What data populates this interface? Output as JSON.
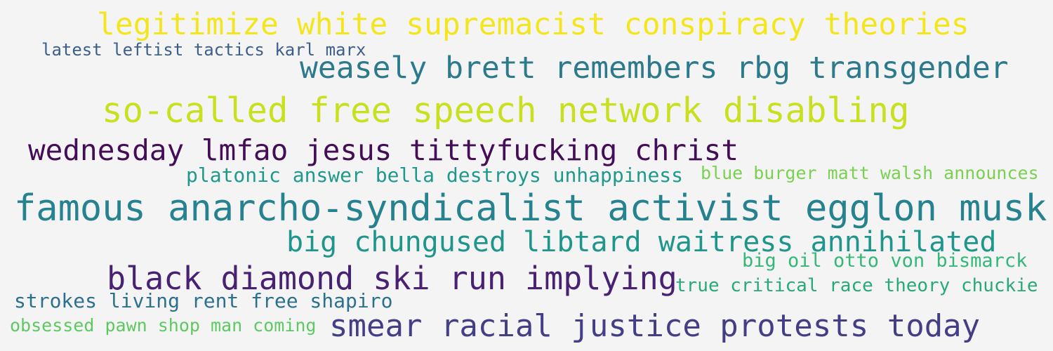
{
  "cloud": {
    "phrases": [
      {
        "text": "legitimize white supremacist conspiracy theories",
        "color": "#f4e61e"
      },
      {
        "text": "latest leftist tactics karl marx",
        "color": "#3b5f8a"
      },
      {
        "text": "weasely brett remembers rbg transgender",
        "color": "#2c7a8c"
      },
      {
        "text": "so-called free speech network disabling",
        "color": "#c9e020"
      },
      {
        "text": "wednesday lmfao jesus tittyfucking christ",
        "color": "#440e57"
      },
      {
        "text": "platonic answer bella destroys unhappiness",
        "color": "#1f9a8a"
      },
      {
        "text": "blue burger matt walsh announces",
        "color": "#7ad151"
      },
      {
        "text": "famous anarcho-syndicalist activist egglon musk",
        "color": "#26828e"
      },
      {
        "text": "big chungused libtard waitress annihilated",
        "color": "#1f968b"
      },
      {
        "text": "big oil otto von bismarck",
        "color": "#35b779"
      },
      {
        "text": "black diamond ski run implying",
        "color": "#482173"
      },
      {
        "text": "true critical race theory chuckie",
        "color": "#29a97a"
      },
      {
        "text": "strokes living rent free shapiro",
        "color": "#2d708e"
      },
      {
        "text": "obsessed pawn shop man coming",
        "color": "#5ec962"
      },
      {
        "text": "smear racial justice protests today",
        "color": "#433e85"
      }
    ]
  }
}
